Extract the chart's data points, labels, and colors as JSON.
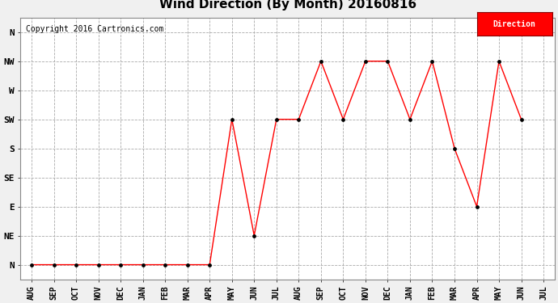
{
  "title": "Wind Direction (By Month) 20160816",
  "copyright": "Copyright 2016 Cartronics.com",
  "legend_label": "Direction",
  "legend_color": "#ff0000",
  "legend_text_color": "#ffffff",
  "x_labels": [
    "AUG",
    "SEP",
    "OCT",
    "NOV",
    "DEC",
    "JAN",
    "FEB",
    "MAR",
    "APR",
    "MAY",
    "JUN",
    "JUL",
    "AUG",
    "SEP",
    "OCT",
    "NOV",
    "DEC",
    "JAN",
    "FEB",
    "MAR",
    "APR",
    "MAY",
    "JUN",
    "JUL"
  ],
  "y_labels": [
    "N",
    "NE",
    "E",
    "SE",
    "S",
    "SW",
    "W",
    "NW",
    "N"
  ],
  "y_values": [
    0,
    1,
    2,
    3,
    4,
    5,
    6,
    7,
    8
  ],
  "data": [
    0,
    0,
    0,
    0,
    0,
    0,
    0,
    0,
    0,
    5,
    1,
    5,
    5,
    7,
    5,
    7,
    7,
    5,
    7,
    4,
    2,
    7,
    5,
    null
  ],
  "line_color": "#ff0000",
  "marker_color": "#000000",
  "bg_color": "#f0f0f0",
  "plot_bg_color": "#ffffff",
  "grid_color": "#aaaaaa",
  "title_fontsize": 11,
  "copyright_fontsize": 7,
  "ylabel_fontsize": 8,
  "xlabel_fontsize": 7
}
